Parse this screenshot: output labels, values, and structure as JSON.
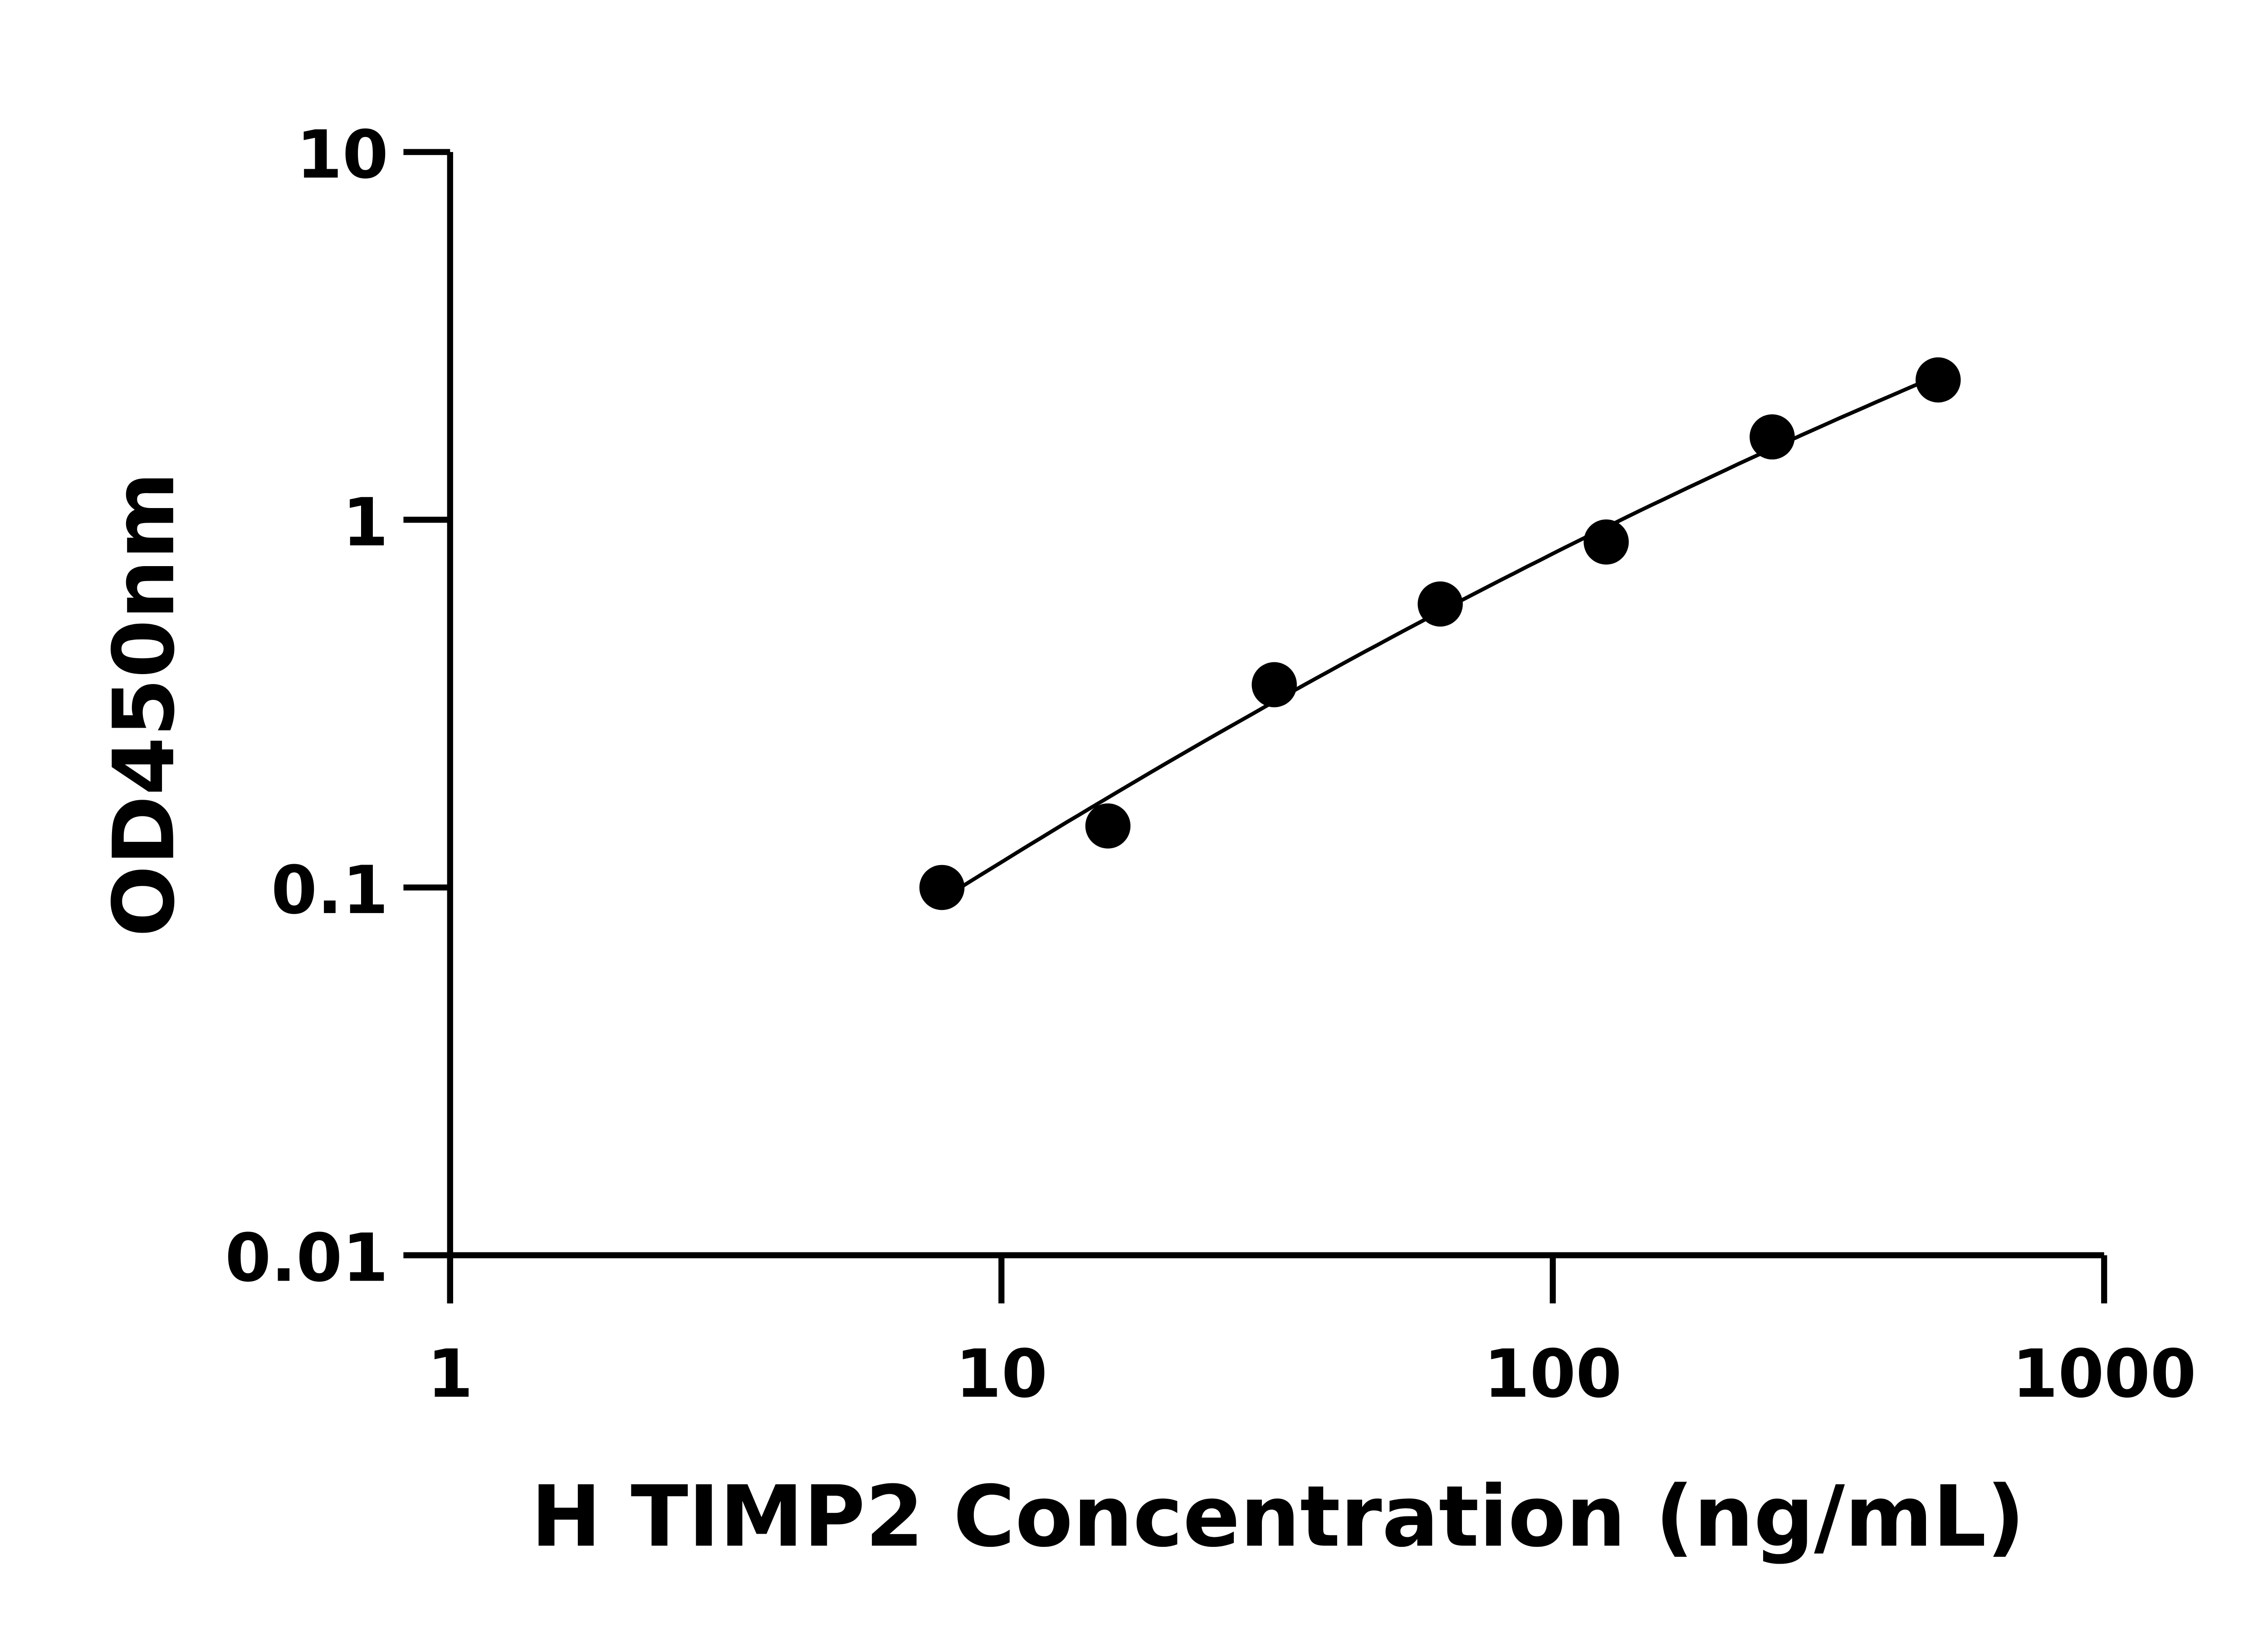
{
  "chart_data": {
    "type": "scatter",
    "title": "",
    "xlabel": "H TIMP2 Concentration (ng/mL)",
    "ylabel": "OD450nm",
    "x_scale": "log",
    "y_scale": "log",
    "xlim": [
      1,
      1000
    ],
    "ylim": [
      0.01,
      10
    ],
    "x_ticks": [
      "1",
      "10",
      "100",
      "1000"
    ],
    "y_ticks": [
      "0.01",
      "0.1",
      "1",
      "10"
    ],
    "grid": false,
    "legend": "none",
    "fit_curve": true,
    "colors": {
      "points": "#000000",
      "curve": "#000000",
      "axes": "#000000"
    },
    "series": [
      {
        "x": [
          7.8,
          15.6,
          31.25,
          62.5,
          125,
          250,
          500
        ],
        "y": [
          0.1,
          0.147,
          0.356,
          0.59,
          0.87,
          1.68,
          2.4
        ]
      }
    ]
  }
}
